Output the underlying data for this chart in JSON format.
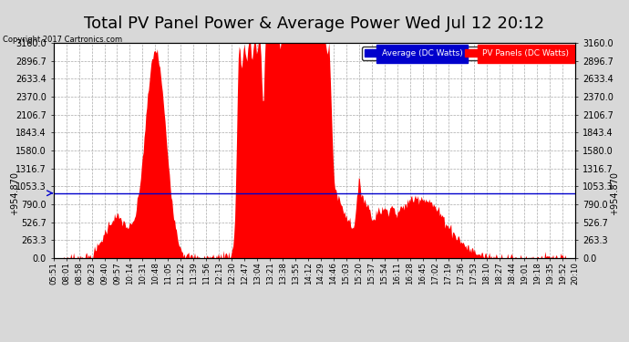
{
  "title": "Total PV Panel Power & Average Power Wed Jul 12 20:12",
  "copyright": "Copyright 2017 Cartronics.com",
  "average_value": 954.87,
  "average_label": "Average (DC Watts)",
  "pv_label": "PV Panels (DC Watts)",
  "ymax": 3160.0,
  "ymin": 0.0,
  "yticks": [
    0.0,
    263.3,
    526.7,
    790.0,
    1053.3,
    1316.7,
    1580.0,
    1843.4,
    2106.7,
    2370.0,
    2633.4,
    2896.7,
    3160.0
  ],
  "bg_color": "#d8d8d8",
  "plot_bg_color": "#ffffff",
  "area_color": "#ff0000",
  "average_color": "#0000cc",
  "grid_color": "#aaaaaa",
  "title_fontsize": 13,
  "label_fontsize": 7,
  "xtick_fontsize": 6.2,
  "xtick_labels": [
    "05:51",
    "08:01",
    "08:58",
    "09:23",
    "09:40",
    "09:57",
    "10:14",
    "10:31",
    "10:48",
    "11:05",
    "11:22",
    "11:39",
    "11:56",
    "12:13",
    "12:30",
    "12:47",
    "13:04",
    "13:21",
    "13:38",
    "13:55",
    "14:12",
    "14:29",
    "14:46",
    "15:03",
    "15:20",
    "15:37",
    "15:54",
    "16:11",
    "16:28",
    "16:45",
    "17:02",
    "17:19",
    "17:36",
    "17:53",
    "18:10",
    "18:27",
    "18:44",
    "19:01",
    "19:18",
    "19:35",
    "19:52",
    "20:10"
  ],
  "avg_annotation": "+954.870"
}
